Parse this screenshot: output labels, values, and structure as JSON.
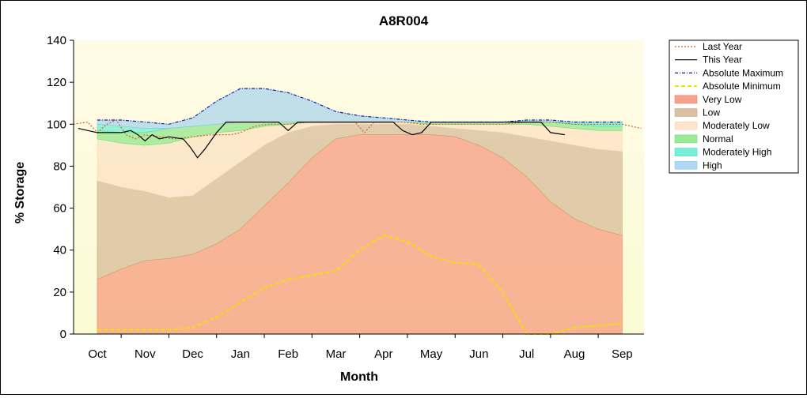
{
  "chart_data": {
    "type": "area",
    "title": "A8R004",
    "xlabel": "Month",
    "ylabel": "% Storage",
    "ylim": [
      0,
      140
    ],
    "yticks": [
      "0",
      "20",
      "40",
      "60",
      "80",
      "100",
      "120",
      "140"
    ],
    "categories": [
      "Oct",
      "Nov",
      "Dec",
      "Jan",
      "Feb",
      "Mar",
      "Apr",
      "May",
      "Jun",
      "Jul",
      "Aug",
      "Sep"
    ],
    "x_positions": [
      0,
      1,
      2,
      3,
      4,
      5,
      6,
      7,
      8,
      9,
      10,
      11
    ],
    "band_x": [
      0,
      0.5,
      1,
      1.5,
      2,
      2.5,
      3,
      3.5,
      4,
      4.5,
      5,
      5.5,
      6,
      6.5,
      7,
      7.5,
      8,
      8.5,
      9,
      9.5,
      10,
      10.5,
      11
    ],
    "bands": [
      {
        "name": "Very Low",
        "color": "#f47a5e",
        "lower": [
          0,
          0,
          0,
          0,
          0,
          0,
          0,
          0,
          0,
          0,
          0,
          0,
          0,
          0,
          0,
          0,
          0,
          0,
          0,
          0,
          0,
          0,
          0
        ],
        "upper": [
          26,
          31,
          35,
          36,
          38,
          43,
          50,
          61,
          72,
          84,
          93,
          95,
          95,
          95,
          95,
          94,
          90,
          84,
          75,
          63,
          55,
          50,
          47
        ]
      },
      {
        "name": "Low",
        "color": "#c9a680",
        "lower": [
          26,
          31,
          35,
          36,
          38,
          43,
          50,
          61,
          72,
          84,
          93,
          95,
          95,
          95,
          95,
          94,
          90,
          84,
          75,
          63,
          55,
          50,
          47
        ],
        "upper": [
          73,
          70,
          68,
          65,
          66,
          74,
          82,
          90,
          96,
          99,
          100,
          100,
          100,
          100,
          99,
          98,
          97,
          96,
          94,
          92,
          90,
          88,
          87
        ]
      },
      {
        "name": "Moderately Low",
        "color": "#fbd9b8",
        "lower": [
          73,
          70,
          68,
          65,
          66,
          74,
          82,
          90,
          96,
          99,
          100,
          100,
          100,
          100,
          99,
          98,
          97,
          96,
          94,
          92,
          90,
          88,
          87
        ],
        "upper": [
          93,
          91,
          90,
          91,
          94,
          96,
          97,
          99,
          100,
          101,
          101,
          101,
          101,
          101,
          100,
          100,
          100,
          100,
          100,
          99,
          98,
          97,
          97
        ]
      },
      {
        "name": "Normal",
        "color": "#6ee06e",
        "lower": [
          93,
          91,
          90,
          91,
          94,
          96,
          97,
          99,
          100,
          101,
          101,
          101,
          101,
          101,
          100,
          100,
          100,
          100,
          100,
          99,
          98,
          97,
          97
        ],
        "upper": [
          97,
          96,
          96,
          98,
          99,
          100,
          101,
          101,
          101,
          101,
          101,
          101,
          101,
          101,
          101,
          101,
          101,
          101,
          101,
          101,
          100,
          99,
          99
        ]
      },
      {
        "name": "Moderately High",
        "color": "#40e8c8",
        "lower": [
          97,
          96,
          96,
          98,
          99,
          100,
          101,
          101,
          101,
          101,
          101,
          101,
          101,
          101,
          101,
          101,
          101,
          101,
          101,
          101,
          100,
          99,
          99
        ],
        "upper": [
          100,
          99,
          98,
          98,
          99,
          100,
          101,
          101,
          101,
          101,
          101,
          101,
          101,
          101,
          101,
          101,
          101,
          101,
          101,
          101,
          101,
          101,
          101
        ]
      },
      {
        "name": "High",
        "color": "#8ec8ec",
        "lower": [
          100,
          99,
          98,
          98,
          99,
          100,
          101,
          101,
          101,
          101,
          101,
          101,
          101,
          101,
          101,
          101,
          101,
          101,
          101,
          101,
          101,
          101,
          101
        ],
        "upper": [
          102,
          102,
          101,
          100,
          103,
          111,
          117,
          117,
          115,
          111,
          106,
          104,
          103,
          102,
          101,
          101,
          101,
          101,
          102,
          102,
          101,
          101,
          101
        ]
      }
    ],
    "series": [
      {
        "name": "Last Year",
        "color": "#c86432",
        "style": "dotted",
        "x": [
          -0.5,
          -0.2,
          0,
          0.2,
          0.4,
          0.6,
          0.8,
          1.0,
          1.3,
          1.6,
          2.0,
          2.4,
          2.8,
          3.0,
          3.3,
          3.6,
          4.0,
          4.4,
          5.0,
          5.4,
          5.6,
          5.8,
          6.0,
          6.4,
          6.8,
          7.0,
          7.5,
          8.0,
          8.5,
          9.0,
          9.5,
          10.0,
          10.5,
          11.0,
          11.4
        ],
        "y": [
          100,
          101,
          96,
          100,
          102,
          95,
          93,
          95,
          94,
          93,
          94,
          95,
          95,
          96,
          99,
          100,
          100,
          101,
          101,
          101,
          96,
          101,
          101,
          101,
          100,
          100,
          100,
          100,
          100,
          101,
          101,
          100,
          100,
          100,
          98
        ]
      },
      {
        "name": "This Year",
        "color": "#000000",
        "style": "solid",
        "x": [
          -0.4,
          -0.2,
          0,
          0.3,
          0.5,
          0.7,
          0.85,
          1.0,
          1.15,
          1.3,
          1.5,
          1.8,
          1.95,
          2.1,
          2.25,
          2.5,
          2.7,
          3.0,
          3.2,
          3.5,
          3.8,
          4.0,
          4.2,
          4.5,
          5.0,
          5.5,
          5.8,
          6.0,
          6.2,
          6.4,
          6.6,
          6.8,
          7.0,
          7.5,
          8.0,
          8.5,
          9.0,
          9.3,
          9.5,
          9.8
        ],
        "y": [
          98,
          97,
          96,
          96,
          96,
          97,
          95,
          92,
          95,
          93,
          94,
          93,
          89,
          84,
          88,
          96,
          101,
          101,
          101,
          101,
          101,
          97,
          101,
          101,
          101,
          101,
          101,
          101,
          101,
          97,
          95,
          96,
          101,
          101,
          101,
          101,
          101,
          101,
          96,
          95
        ]
      },
      {
        "name": "Absolute Maximum",
        "color": "#1a1aa0",
        "style": "dashdot",
        "x": [
          0,
          0.5,
          1,
          1.5,
          2,
          2.5,
          3,
          3.5,
          4,
          4.5,
          5,
          5.5,
          6,
          6.5,
          7,
          7.5,
          8,
          8.5,
          9,
          9.5,
          10,
          10.5,
          11
        ],
        "y": [
          102,
          102,
          101,
          100,
          103,
          111,
          117,
          117,
          115,
          111,
          106,
          104,
          103,
          102,
          101,
          101,
          101,
          101,
          102,
          102,
          101,
          101,
          101
        ]
      },
      {
        "name": "Absolute Minimum",
        "color": "#f0e000",
        "style": "dashed",
        "x": [
          0,
          0.5,
          1,
          1.5,
          2,
          2.5,
          3,
          3.5,
          4,
          4.5,
          5,
          5.5,
          6,
          6.5,
          7,
          7.5,
          8,
          8.5,
          9,
          9.5,
          10,
          10.5,
          11
        ],
        "y": [
          2,
          2,
          2,
          2,
          3,
          8,
          15,
          22,
          26,
          28,
          30,
          40,
          47,
          44,
          37,
          34,
          33,
          20,
          0,
          0,
          3,
          4,
          5
        ]
      }
    ],
    "legend": [
      "Last Year",
      "This Year",
      "Absolute Maximum",
      "Absolute Minimum",
      "Very Low",
      "Low",
      "Moderately Low",
      "Normal",
      "Moderately High",
      "High"
    ],
    "legend_position": "right",
    "grid": false
  }
}
